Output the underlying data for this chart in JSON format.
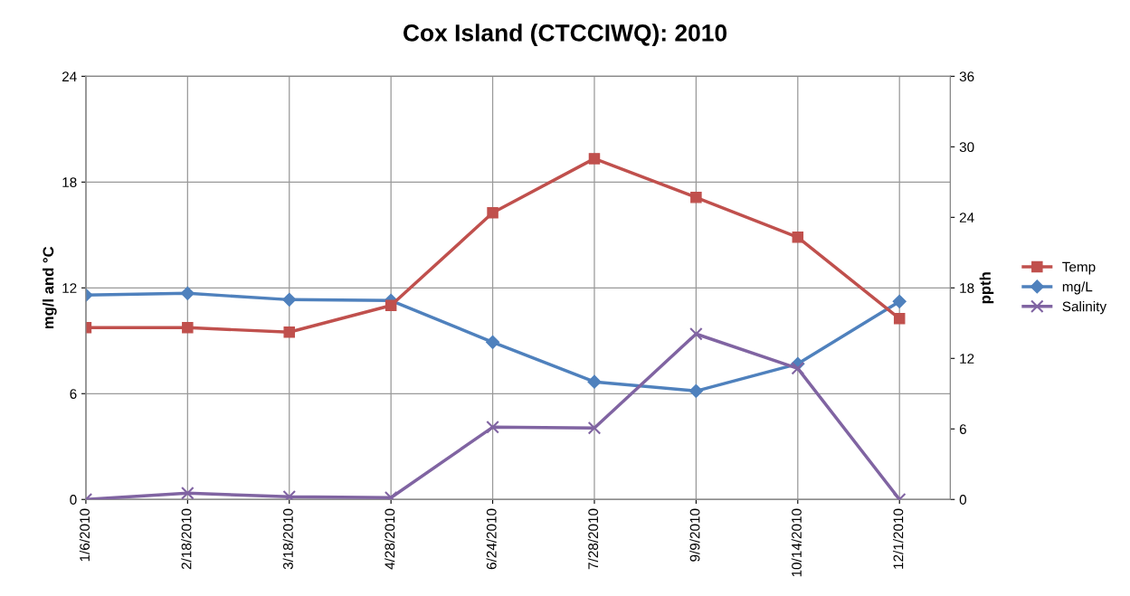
{
  "chart_data": {
    "type": "line",
    "title": "Cox Island (CTCCIWQ): 2010",
    "ylabel": "mg/l and °C",
    "y2label": "ppth",
    "categories": [
      "1/6/2010",
      "2/18/2010",
      "3/18/2010",
      "4/28/2010",
      "6/24/2010",
      "7/28/2010",
      "9/9/2010",
      "10/14/2010",
      "12/1/2010"
    ],
    "series": [
      {
        "name": "Temp",
        "color": "#c0504d",
        "marker": "square",
        "values": [
          9.74,
          9.74,
          9.49,
          11.0,
          16.26,
          19.33,
          17.13,
          14.87,
          10.26
        ]
      },
      {
        "name": "mg/L",
        "color": "#4f81bd",
        "marker": "diamond",
        "values": [
          11.59,
          11.69,
          11.33,
          11.28,
          8.92,
          6.67,
          6.15,
          7.69,
          11.23
        ]
      },
      {
        "name": "Salinity",
        "color": "#8064a2",
        "marker": "cross",
        "axis": "y2",
        "values": [
          0,
          0.54,
          0.23,
          0.15,
          6.15,
          6.08,
          14.08,
          11.15,
          0
        ]
      }
    ],
    "ylim": [
      0,
      24
    ],
    "yticks": [
      0,
      6,
      12,
      18,
      24
    ],
    "y2lim": [
      0,
      36
    ],
    "y2ticks": [
      0,
      6,
      12,
      18,
      24,
      30,
      36
    ],
    "grid": true,
    "legend": "right",
    "line_style": "solid"
  }
}
